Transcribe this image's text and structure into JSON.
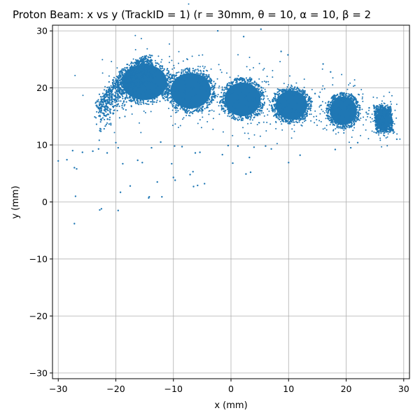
{
  "chart_data": {
    "type": "scatter",
    "title": "Proton Beam: x vs y (TrackID = 1) (r = 30mm, θ = 10, α = 10, β = 2",
    "xlabel": "x (mm)",
    "ylabel": "y (mm)",
    "xlim": [
      -31,
      31
    ],
    "ylim": [
      -31,
      31
    ],
    "xticks": [
      -30,
      -20,
      -10,
      0,
      10,
      20,
      30
    ],
    "yticks": [
      -30,
      -20,
      -10,
      0,
      10,
      20,
      30
    ],
    "xtick_labels": [
      "−30",
      "−20",
      "−10",
      "0",
      "10",
      "20",
      "30"
    ],
    "ytick_labels": [
      "−30",
      "−20",
      "−10",
      "0",
      "10",
      "20",
      "30"
    ],
    "grid": true,
    "legend": "none",
    "series": [
      {
        "color": "#1f77b4",
        "clusters": [
          {
            "center": [
              -15.0,
              21.0
            ],
            "radius": [
              5.0,
              4.0
            ],
            "density": "high"
          },
          {
            "center": [
              -7.0,
              19.5
            ],
            "radius": [
              4.5,
              4.0
            ],
            "density": "high"
          },
          {
            "center": [
              2.0,
              18.0
            ],
            "radius": [
              4.0,
              3.8
            ],
            "density": "high"
          },
          {
            "center": [
              10.5,
              17.0
            ],
            "radius": [
              3.5,
              3.3
            ],
            "density": "high"
          },
          {
            "center": [
              19.5,
              16.0
            ],
            "radius": [
              3.0,
              3.2
            ],
            "density": "high"
          },
          {
            "center": [
              26.5,
              14.5
            ],
            "radius": [
              1.5,
              2.5
            ],
            "density": "high"
          }
        ],
        "arc_points": [
          [
            -23,
            17.5
          ],
          [
            -22,
            19
          ],
          [
            -21,
            20.3
          ],
          [
            -20,
            21.5
          ],
          [
            -19,
            22.5
          ],
          [
            -18,
            23.5
          ],
          [
            -17,
            24.3
          ],
          [
            -16,
            25
          ],
          [
            -15,
            25.5
          ],
          [
            -14,
            26
          ]
        ],
        "outliers": [
          [
            -30,
            7.2
          ],
          [
            -28.5,
            7.4
          ],
          [
            -27.5,
            9
          ],
          [
            -27.2,
            6
          ],
          [
            -26.8,
            5.8
          ],
          [
            -27,
            1
          ],
          [
            -27.2,
            -3.8
          ],
          [
            -25.8,
            8.7
          ],
          [
            -24,
            8.9
          ],
          [
            -23,
            9.3
          ],
          [
            -22.5,
            -1.2
          ],
          [
            -22.8,
            -1.4
          ],
          [
            -21.5,
            8.6
          ],
          [
            -20,
            10.4
          ],
          [
            -19.6,
            9.5
          ],
          [
            -19.2,
            1.7
          ],
          [
            -19.6,
            -1.5
          ],
          [
            -18.8,
            6.7
          ],
          [
            -17.5,
            2.8
          ],
          [
            -16.2,
            7.3
          ],
          [
            -15.4,
            6.9
          ],
          [
            -14.3,
            0.7
          ],
          [
            -14.2,
            0.9
          ],
          [
            -13.8,
            9.5
          ],
          [
            -12.8,
            3.5
          ],
          [
            -12.2,
            10.5
          ],
          [
            -12,
            0.9
          ],
          [
            -10.3,
            6.7
          ],
          [
            -10,
            4.3
          ],
          [
            -9.8,
            9.8
          ],
          [
            -9.7,
            3.8
          ],
          [
            -8.5,
            9.7
          ],
          [
            -7.1,
            4.8
          ],
          [
            -6.6,
            5.3
          ],
          [
            -6.5,
            2.7
          ],
          [
            -6.2,
            8.6
          ],
          [
            -5.8,
            2.9
          ],
          [
            -5.4,
            8.7
          ],
          [
            -4.6,
            3.2
          ],
          [
            -2.3,
            30
          ],
          [
            -1.5,
            8.3
          ],
          [
            -0.5,
            9.9
          ],
          [
            0.3,
            6.8
          ],
          [
            1.2,
            9.8
          ],
          [
            2.2,
            29
          ],
          [
            2.6,
            4.9
          ],
          [
            3.2,
            7.8
          ],
          [
            3.4,
            5.2
          ],
          [
            4,
            9.6
          ],
          [
            5.2,
            30.3
          ],
          [
            6,
            9.8
          ],
          [
            7,
            9.3
          ],
          [
            8.7,
            26.4
          ],
          [
            9.9,
            25.8
          ],
          [
            10,
            6.9
          ],
          [
            12,
            8.2
          ],
          [
            14.6,
            19
          ],
          [
            16,
            24.2
          ],
          [
            17.3,
            22.8
          ],
          [
            18.1,
            9.2
          ],
          [
            20.8,
            9.5
          ],
          [
            22,
            10.4
          ],
          [
            23.5,
            15.7
          ],
          [
            24,
            16.5
          ],
          [
            28.8,
            11
          ]
        ]
      }
    ]
  }
}
